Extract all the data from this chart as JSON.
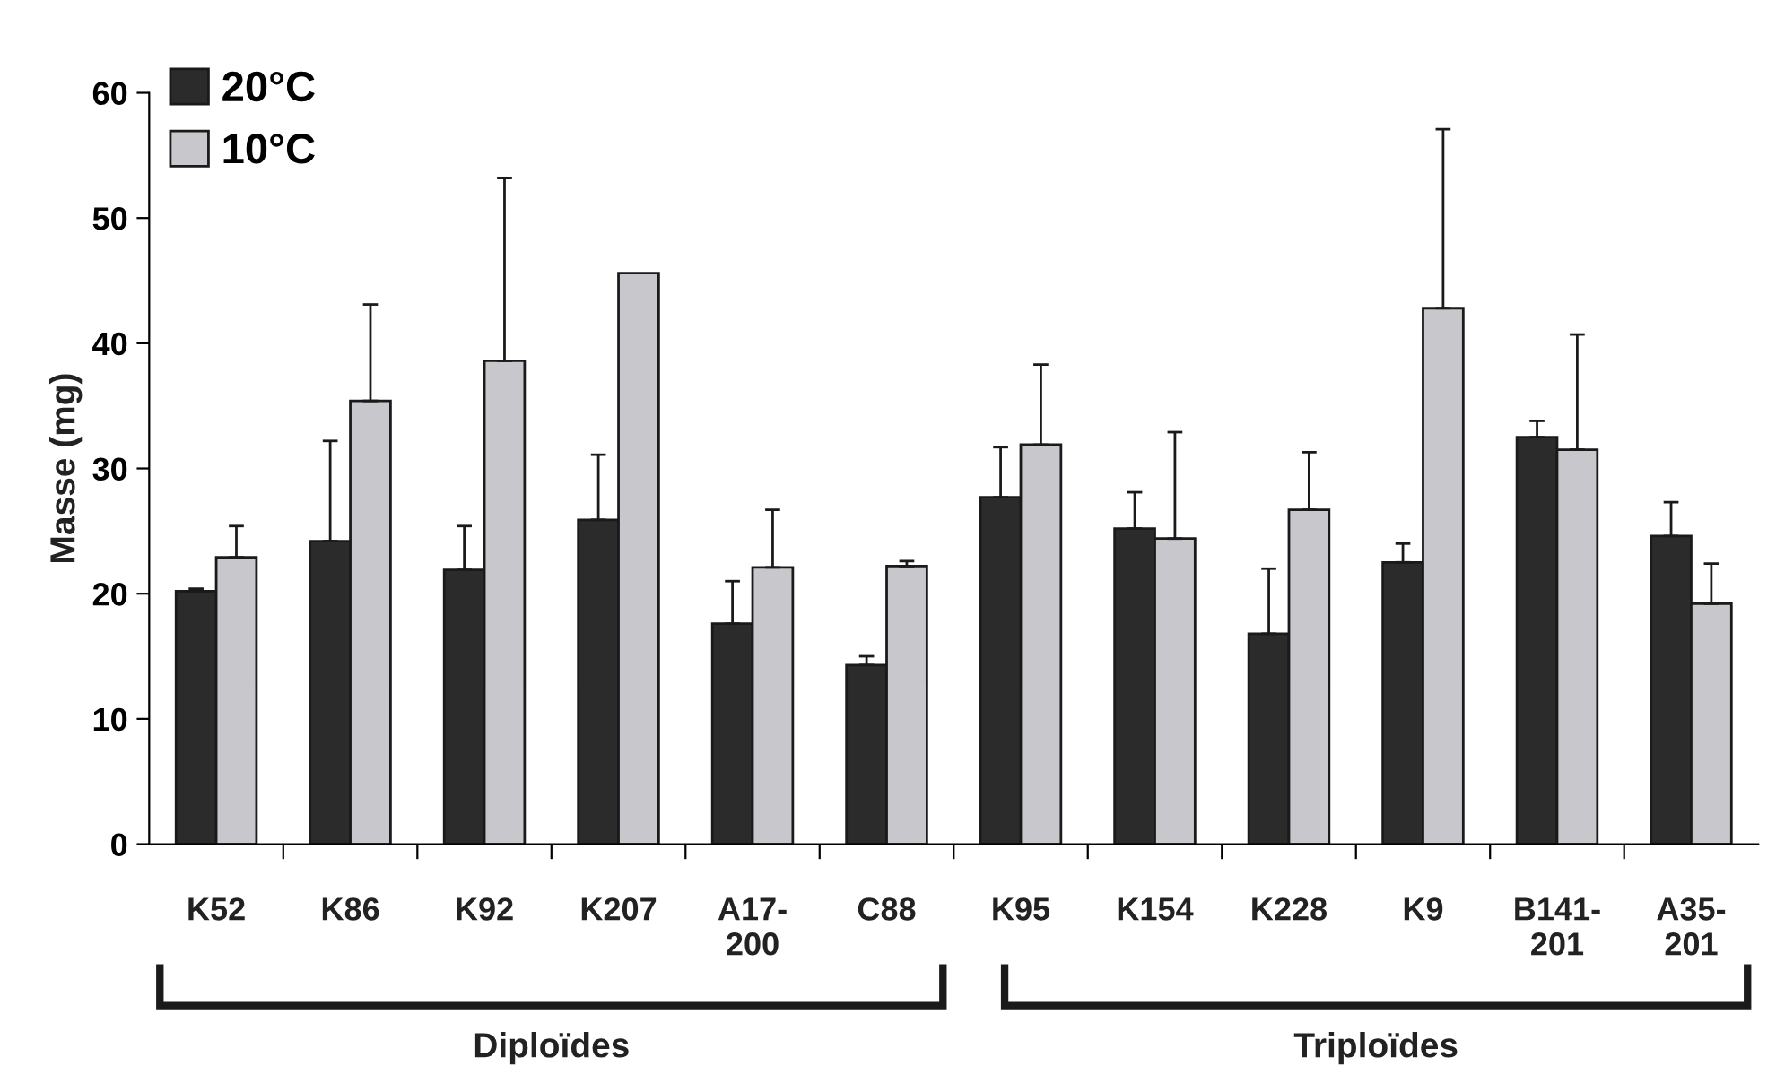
{
  "chart_data": {
    "type": "bar",
    "ylabel": "Masse (mg)",
    "categories": [
      "K52",
      "K86",
      "K92",
      "K207",
      "A17-200",
      "C88",
      "K95",
      "K154",
      "K228",
      "K9",
      "B141-201",
      "A35-201"
    ],
    "series": [
      {
        "name": "20°C",
        "color": "#2b2b2b",
        "values": [
          20.2,
          24.2,
          21.9,
          25.9,
          17.6,
          14.3,
          27.7,
          25.2,
          16.8,
          22.5,
          32.5,
          24.6
        ],
        "errors": [
          [
            20.2,
            20.4
          ],
          [
            24.2,
            32.2
          ],
          [
            21.9,
            25.4
          ],
          [
            25.9,
            31.1
          ],
          [
            17.6,
            21.0
          ],
          [
            14.3,
            15.0
          ],
          [
            27.7,
            31.7
          ],
          [
            25.2,
            28.1
          ],
          [
            16.8,
            22.0
          ],
          [
            22.5,
            24.0
          ],
          [
            32.5,
            33.8
          ],
          [
            24.6,
            27.3
          ]
        ]
      },
      {
        "name": "10°C",
        "color": "#c8c8cc",
        "values": [
          22.9,
          35.4,
          38.6,
          45.6,
          22.1,
          22.2,
          31.9,
          24.4,
          26.7,
          42.8,
          31.5,
          19.2
        ],
        "errors": [
          [
            22.9,
            25.4
          ],
          [
            35.4,
            43.1
          ],
          [
            38.6,
            53.2
          ],
          null,
          [
            22.1,
            26.7
          ],
          [
            22.2,
            22.6
          ],
          [
            31.9,
            38.3
          ],
          [
            24.4,
            32.9
          ],
          [
            26.7,
            31.3
          ],
          [
            42.8,
            57.1
          ],
          [
            31.5,
            40.7
          ],
          [
            19.2,
            22.4
          ]
        ]
      }
    ],
    "ylim": [
      0,
      60
    ],
    "yticks": [
      0,
      10,
      20,
      30,
      40,
      50,
      60
    ],
    "legend": "top left",
    "grid": false,
    "annotations": [
      "Diploïdes",
      "Triploïdes"
    ]
  }
}
